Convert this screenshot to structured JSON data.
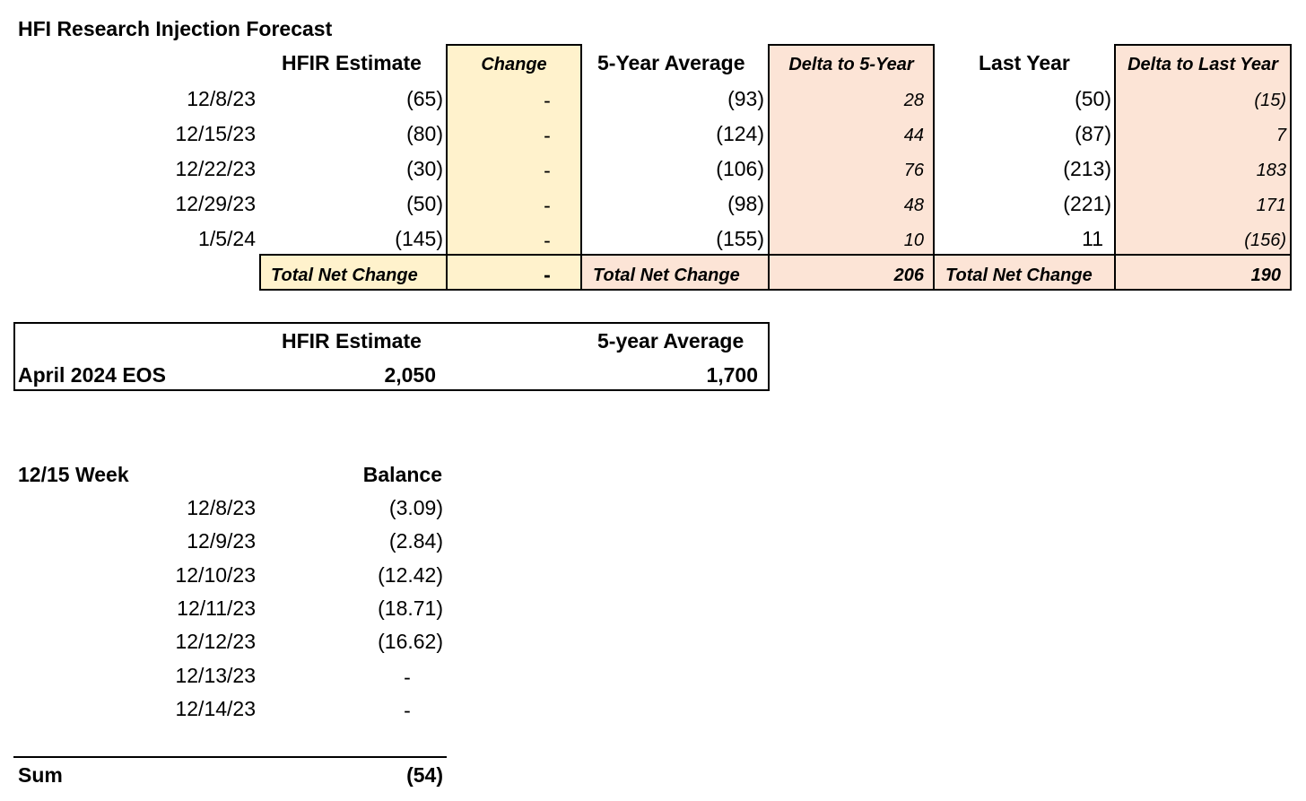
{
  "title": "HFI Research Injection Forecast",
  "colors": {
    "change_fill": "#fff2cc",
    "delta_fill": "#fce4d6"
  },
  "forecast": {
    "headers": {
      "estimate": "HFIR Estimate",
      "change": "Change",
      "avg5": "5-Year Average",
      "delta5": "Delta to 5-Year",
      "last_year": "Last Year",
      "delta_ly": "Delta to Last Year"
    },
    "rows": [
      {
        "date": "12/8/23",
        "estimate": "(65)",
        "change": "-",
        "avg5": "(93)",
        "delta5": "28",
        "last_year": "(50)",
        "delta_ly": "(15)"
      },
      {
        "date": "12/15/23",
        "estimate": "(80)",
        "change": "-",
        "avg5": "(124)",
        "delta5": "44",
        "last_year": "(87)",
        "delta_ly": "7"
      },
      {
        "date": "12/22/23",
        "estimate": "(30)",
        "change": "-",
        "avg5": "(106)",
        "delta5": "76",
        "last_year": "(213)",
        "delta_ly": "183"
      },
      {
        "date": "12/29/23",
        "estimate": "(50)",
        "change": "-",
        "avg5": "(98)",
        "delta5": "48",
        "last_year": "(221)",
        "delta_ly": "171"
      },
      {
        "date": "1/5/24",
        "estimate": "(145)",
        "change": "-",
        "avg5": "(155)",
        "delta5": "10",
        "last_year": "11",
        "delta_ly": "(156)"
      }
    ],
    "totals": {
      "label1": "Total Net Change",
      "change": "-",
      "label2": "Total Net Change",
      "delta5": "206",
      "label3": "Total Net Change",
      "delta_ly": "190"
    }
  },
  "eos": {
    "header_estimate": "HFIR Estimate",
    "header_avg": "5-year Average",
    "row_label": "April 2024 EOS",
    "estimate": "2,050",
    "avg": "1,700"
  },
  "week": {
    "title": "12/15 Week",
    "header": "Balance",
    "rows": [
      {
        "date": "12/8/23",
        "balance": "(3.09)"
      },
      {
        "date": "12/9/23",
        "balance": "(2.84)"
      },
      {
        "date": "12/10/23",
        "balance": "(12.42)"
      },
      {
        "date": "12/11/23",
        "balance": "(18.71)"
      },
      {
        "date": "12/12/23",
        "balance": "(16.62)"
      },
      {
        "date": "12/13/23",
        "balance": "-"
      },
      {
        "date": "12/14/23",
        "balance": "-"
      }
    ],
    "sum_label": "Sum",
    "sum": "(54)"
  }
}
